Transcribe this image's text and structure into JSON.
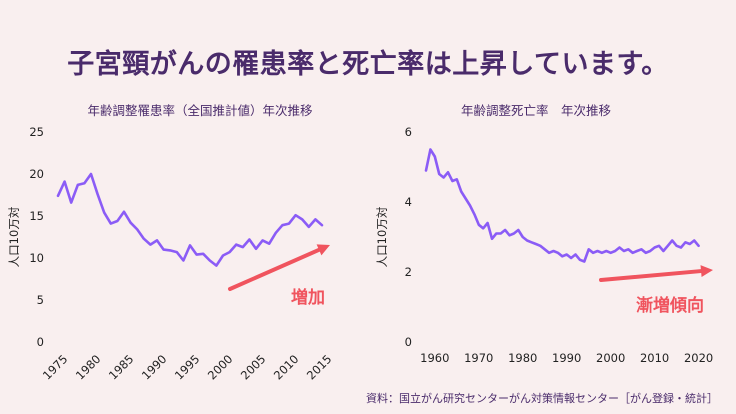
{
  "headline": "子宮頸がんの罹患率と死亡率は上昇しています。",
  "source": "資料：国立がん研究センターがん対策情報センター［がん登録・統計］",
  "colors": {
    "line": "#8b5cf6",
    "arrow": "#f0545e",
    "text": "#4a2b6b",
    "background": "#f9efef"
  },
  "chart_data": [
    {
      "type": "line",
      "title": "年齢調整罹患率（全国推計値）年次推移",
      "xlabel": "",
      "ylabel": "人口10万対",
      "xlim": [
        1975,
        2015
      ],
      "ylim": [
        0,
        25
      ],
      "xticks": [
        "1975",
        "1980",
        "1985",
        "1990",
        "1995",
        "2000",
        "2005",
        "2010",
        "2015"
      ],
      "yticks": [
        "0",
        "5",
        "10",
        "15",
        "20",
        "25"
      ],
      "annotation": "増加",
      "series": [
        {
          "x": [
            1975,
            1976,
            1977,
            1978,
            1979,
            1980,
            1981,
            1982,
            1983,
            1984,
            1985,
            1986,
            1987,
            1988,
            1989,
            1990,
            1991,
            1992,
            1993,
            1994,
            1995,
            1996,
            1997,
            1998,
            1999,
            2000,
            2001,
            2002,
            2003,
            2004,
            2005,
            2006,
            2007,
            2008,
            2009,
            2010,
            2011,
            2012,
            2013,
            2014,
            2015
          ],
          "y": [
            17.4,
            19.1,
            16.6,
            18.7,
            18.9,
            20.0,
            17.6,
            15.4,
            14.1,
            14.4,
            15.5,
            14.2,
            13.4,
            12.3,
            11.6,
            12.1,
            11.0,
            10.9,
            10.7,
            9.7,
            11.5,
            10.4,
            10.5,
            9.7,
            9.1,
            10.3,
            10.7,
            11.6,
            11.3,
            12.2,
            11.1,
            12.1,
            11.7,
            13.0,
            13.9,
            14.1,
            15.1,
            14.6,
            13.7,
            14.6,
            13.9
          ]
        }
      ]
    },
    {
      "type": "line",
      "title": "年齢調整死亡率　年次推移",
      "xlabel": "",
      "ylabel": "人口10万対",
      "xlim": [
        1958,
        2021
      ],
      "ylim": [
        0,
        6
      ],
      "xticks": [
        "1960",
        "1970",
        "1980",
        "1990",
        "2000",
        "2010",
        "2020"
      ],
      "yticks": [
        "0",
        "2",
        "4",
        "6"
      ],
      "annotation": "漸増傾向",
      "series": [
        {
          "x": [
            1958,
            1959,
            1960,
            1961,
            1962,
            1963,
            1964,
            1965,
            1966,
            1967,
            1968,
            1969,
            1970,
            1971,
            1972,
            1973,
            1974,
            1975,
            1976,
            1977,
            1978,
            1979,
            1980,
            1981,
            1982,
            1983,
            1984,
            1985,
            1986,
            1987,
            1988,
            1989,
            1990,
            1991,
            1992,
            1993,
            1994,
            1995,
            1996,
            1997,
            1998,
            1999,
            2000,
            2001,
            2002,
            2003,
            2004,
            2005,
            2006,
            2007,
            2008,
            2009,
            2010,
            2011,
            2012,
            2013,
            2014,
            2015,
            2016,
            2017,
            2018,
            2019,
            2020
          ],
          "y": [
            4.9,
            5.5,
            5.3,
            4.8,
            4.7,
            4.85,
            4.6,
            4.65,
            4.3,
            4.1,
            3.9,
            3.65,
            3.35,
            3.25,
            3.4,
            2.95,
            3.1,
            3.1,
            3.2,
            3.05,
            3.1,
            3.2,
            3.0,
            2.9,
            2.85,
            2.8,
            2.75,
            2.65,
            2.55,
            2.6,
            2.55,
            2.45,
            2.5,
            2.4,
            2.5,
            2.35,
            2.3,
            2.65,
            2.55,
            2.6,
            2.55,
            2.6,
            2.55,
            2.6,
            2.7,
            2.6,
            2.65,
            2.55,
            2.6,
            2.65,
            2.55,
            2.6,
            2.7,
            2.75,
            2.6,
            2.75,
            2.9,
            2.75,
            2.7,
            2.85,
            2.8,
            2.9,
            2.75
          ]
        }
      ]
    }
  ]
}
